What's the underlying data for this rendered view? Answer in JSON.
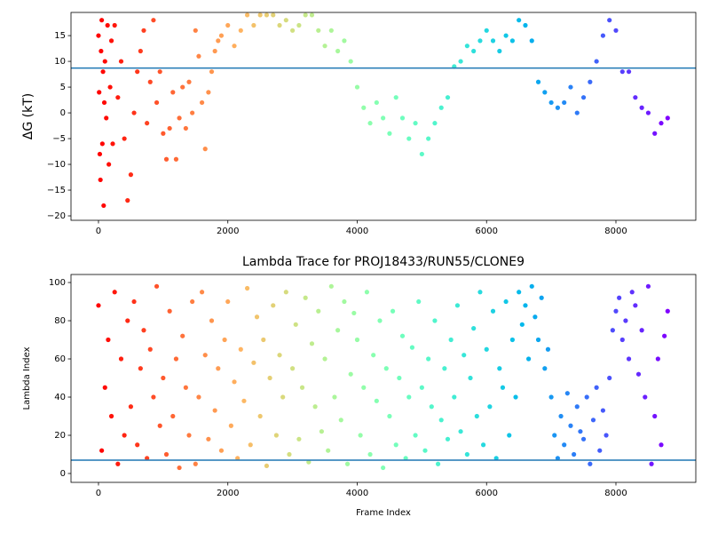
{
  "chart_data": [
    {
      "type": "scatter",
      "ylabel": "ΔG (kT)",
      "colormap": "rainbow_r",
      "xlim": [
        -425,
        9235
      ],
      "ylim": [
        -20.86,
        19.5
      ],
      "xticks": [
        0,
        2000,
        4000,
        6000,
        8000
      ],
      "yticks": [
        {
          "value": -20,
          "label": "−20"
        },
        {
          "value": -15,
          "label": "−15"
        },
        {
          "value": -10,
          "label": "−10"
        },
        {
          "value": -5,
          "label": "−5"
        },
        0,
        5,
        10,
        15
      ],
      "hline": {
        "value": 8.7,
        "color": "#1f77b4"
      },
      "x": [
        0,
        10,
        20,
        30,
        40,
        50,
        60,
        70,
        80,
        90,
        100,
        120,
        140,
        160,
        180,
        200,
        220,
        250,
        300,
        350,
        400,
        450,
        500,
        550,
        600,
        650,
        700,
        750,
        800,
        850,
        900,
        950,
        1000,
        1050,
        1100,
        1150,
        1200,
        1250,
        1300,
        1350,
        1400,
        1450,
        1500,
        1550,
        1600,
        1650,
        1700,
        1750,
        1800,
        1850,
        1900,
        2000,
        2100,
        2200,
        2300,
        2400,
        2500,
        2600,
        2700,
        2800,
        2900,
        3000,
        3100,
        3200,
        3300,
        3400,
        3500,
        3600,
        3700,
        3800,
        3900,
        4000,
        4100,
        4200,
        4300,
        4400,
        4500,
        4600,
        4700,
        4800,
        4900,
        5000,
        5100,
        5200,
        5300,
        5400,
        5500,
        5600,
        5700,
        5800,
        5900,
        6000,
        6100,
        6200,
        6300,
        6400,
        6500,
        6600,
        6700,
        6800,
        6900,
        7000,
        7100,
        7200,
        7300,
        7400,
        7500,
        7600,
        7700,
        7800,
        7900,
        8000,
        8100,
        8200,
        8300,
        8400,
        8500,
        8600,
        8700,
        8800
      ],
      "values": [
        15,
        4,
        -8,
        -13,
        12,
        18,
        -6,
        8,
        -18,
        2,
        10,
        -1,
        17,
        -10,
        5,
        14,
        -6,
        17,
        3,
        10,
        -5,
        -17,
        -12,
        0,
        8,
        12,
        16,
        -2,
        6,
        18,
        2,
        8,
        -4,
        -9,
        -3,
        4,
        -9,
        -1,
        5,
        -3,
        6,
        0,
        16,
        11,
        2,
        -7,
        4,
        8,
        12,
        14,
        15,
        17,
        13,
        16,
        19,
        17,
        19,
        19,
        19,
        17,
        18,
        16,
        17,
        19,
        19,
        16,
        13,
        16,
        12,
        14,
        10,
        5,
        1,
        -2,
        2,
        -1,
        -4,
        3,
        -1,
        -5,
        -2,
        -8,
        -5,
        -2,
        1,
        3,
        9,
        10,
        13,
        12,
        14,
        16,
        14,
        12,
        15,
        14,
        18,
        17,
        14,
        6,
        4,
        2,
        1,
        2,
        5,
        0,
        3,
        6,
        10,
        15,
        18,
        16,
        8,
        8,
        3,
        1,
        0,
        -4,
        -2,
        -1
      ]
    },
    {
      "type": "scatter",
      "title": "Lambda Trace for PROJ18433/RUN55/CLONE9",
      "xlabel": "Frame Index",
      "ylabel": "Lambda Index",
      "colormap": "rainbow_r",
      "xlim": [
        -425,
        9235
      ],
      "ylim": [
        -4.65,
        104.2
      ],
      "xticks": [
        0,
        2000,
        4000,
        6000,
        8000
      ],
      "yticks": [
        0,
        20,
        40,
        60,
        80,
        100
      ],
      "hline": {
        "value": 7,
        "color": "#1f77b4"
      },
      "x": [
        0,
        50,
        100,
        150,
        200,
        250,
        300,
        350,
        400,
        450,
        500,
        550,
        600,
        650,
        700,
        750,
        800,
        850,
        900,
        950,
        1000,
        1050,
        1100,
        1150,
        1200,
        1250,
        1300,
        1350,
        1400,
        1450,
        1500,
        1550,
        1600,
        1650,
        1700,
        1750,
        1800,
        1850,
        1900,
        1950,
        2000,
        2050,
        2100,
        2150,
        2200,
        2250,
        2300,
        2350,
        2400,
        2450,
        2500,
        2550,
        2600,
        2650,
        2700,
        2750,
        2800,
        2850,
        2900,
        2950,
        3000,
        3050,
        3100,
        3150,
        3200,
        3250,
        3300,
        3350,
        3400,
        3450,
        3500,
        3550,
        3600,
        3650,
        3700,
        3750,
        3800,
        3850,
        3900,
        3950,
        4000,
        4050,
        4100,
        4150,
        4200,
        4250,
        4300,
        4350,
        4400,
        4450,
        4500,
        4550,
        4600,
        4650,
        4700,
        4750,
        4800,
        4850,
        4900,
        4950,
        5000,
        5050,
        5100,
        5150,
        5200,
        5250,
        5300,
        5350,
        5400,
        5450,
        5500,
        5550,
        5600,
        5650,
        5700,
        5750,
        5800,
        5850,
        5900,
        5950,
        6000,
        6050,
        6100,
        6150,
        6200,
        6250,
        6300,
        6350,
        6400,
        6450,
        6500,
        6550,
        6600,
        6650,
        6700,
        6750,
        6800,
        6850,
        6900,
        6950,
        7000,
        7050,
        7100,
        7150,
        7200,
        7250,
        7300,
        7350,
        7400,
        7450,
        7500,
        7550,
        7600,
        7650,
        7700,
        7750,
        7800,
        7850,
        7900,
        7950,
        8000,
        8050,
        8100,
        8150,
        8200,
        8250,
        8300,
        8350,
        8400,
        8450,
        8500,
        8550,
        8600,
        8650,
        8700,
        8750,
        8800
      ],
      "values": [
        88,
        12,
        45,
        70,
        30,
        95,
        5,
        60,
        20,
        80,
        35,
        90,
        15,
        55,
        75,
        8,
        65,
        40,
        98,
        25,
        50,
        10,
        85,
        30,
        60,
        3,
        72,
        45,
        20,
        90,
        5,
        40,
        95,
        62,
        18,
        80,
        33,
        55,
        12,
        70,
        90,
        25,
        48,
        8,
        65,
        38,
        97,
        15,
        58,
        82,
        30,
        70,
        4,
        50,
        88,
        20,
        62,
        40,
        95,
        10,
        55,
        78,
        18,
        45,
        92,
        6,
        68,
        35,
        85,
        22,
        60,
        12,
        98,
        40,
        75,
        28,
        90,
        5,
        52,
        84,
        70,
        20,
        45,
        95,
        10,
        62,
        38,
        80,
        3,
        55,
        30,
        85,
        15,
        50,
        72,
        8,
        40,
        66,
        20,
        90,
        45,
        12,
        60,
        35,
        80,
        5,
        28,
        55,
        18,
        70,
        40,
        88,
        22,
        62,
        10,
        50,
        76,
        30,
        95,
        15,
        65,
        35,
        85,
        8,
        55,
        45,
        90,
        20,
        70,
        40,
        95,
        78,
        88,
        60,
        98,
        82,
        70,
        92,
        55,
        65,
        40,
        20,
        8,
        30,
        15,
        42,
        25,
        10,
        35,
        22,
        18,
        40,
        5,
        28,
        45,
        12,
        33,
        20,
        50,
        75,
        85,
        92,
        70,
        80,
        60,
        95,
        88,
        52,
        75,
        40,
        98,
        5,
        30,
        60,
        15,
        72,
        85
      ]
    }
  ]
}
